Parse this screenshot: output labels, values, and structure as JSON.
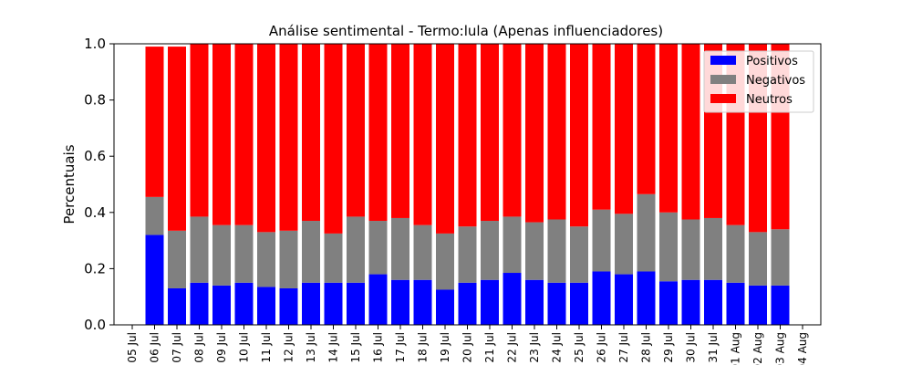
{
  "chart_data": {
    "type": "bar",
    "stacked": true,
    "title": "Análise sentimental - Termo:lula (Apenas influenciadores)",
    "xlabel": "",
    "ylabel": "Percentuais",
    "ylim": [
      0,
      1.0
    ],
    "yticks": [
      "0.0",
      "0.2",
      "0.4",
      "0.6",
      "0.8",
      "1.0"
    ],
    "xticks": [
      "05 Jul",
      "06 Jul",
      "07 Jul",
      "08 Jul",
      "09 Jul",
      "10 Jul",
      "11 Jul",
      "12 Jul",
      "13 Jul",
      "14 Jul",
      "15 Jul",
      "16 Jul",
      "17 Jul",
      "18 Jul",
      "19 Jul",
      "20 Jul",
      "21 Jul",
      "22 Jul",
      "23 Jul",
      "24 Jul",
      "25 Jul",
      "26 Jul",
      "27 Jul",
      "28 Jul",
      "29 Jul",
      "30 Jul",
      "31 Jul",
      "01 Aug",
      "02 Aug",
      "03 Aug",
      "04 Aug"
    ],
    "categories": [
      "06 Jul",
      "07 Jul",
      "08 Jul",
      "09 Jul",
      "10 Jul",
      "11 Jul",
      "12 Jul",
      "13 Jul",
      "14 Jul",
      "15 Jul",
      "16 Jul",
      "17 Jul",
      "18 Jul",
      "19 Jul",
      "20 Jul",
      "21 Jul",
      "22 Jul",
      "23 Jul",
      "24 Jul",
      "25 Jul",
      "26 Jul",
      "27 Jul",
      "28 Jul",
      "29 Jul",
      "30 Jul",
      "31 Jul",
      "01 Aug",
      "02 Aug",
      "03 Aug"
    ],
    "legend_position": "top-right",
    "grid": false,
    "series": [
      {
        "name": "Positivos",
        "color": "#0000ff",
        "values": [
          0.32,
          0.13,
          0.15,
          0.14,
          0.15,
          0.135,
          0.13,
          0.15,
          0.15,
          0.15,
          0.18,
          0.16,
          0.16,
          0.125,
          0.15,
          0.16,
          0.185,
          0.16,
          0.15,
          0.15,
          0.19,
          0.18,
          0.19,
          0.155,
          0.16,
          0.16,
          0.15,
          0.14,
          0.14
        ]
      },
      {
        "name": "Negativos",
        "color": "#808080",
        "values": [
          0.135,
          0.205,
          0.235,
          0.215,
          0.205,
          0.195,
          0.205,
          0.22,
          0.175,
          0.235,
          0.19,
          0.22,
          0.195,
          0.2,
          0.2,
          0.21,
          0.2,
          0.205,
          0.225,
          0.2,
          0.22,
          0.215,
          0.275,
          0.245,
          0.215,
          0.22,
          0.205,
          0.19,
          0.2
        ]
      },
      {
        "name": "Neutros",
        "color": "#ff0000",
        "values": [
          0.535,
          0.655,
          0.615,
          0.645,
          0.645,
          0.67,
          0.665,
          0.63,
          0.675,
          0.615,
          0.63,
          0.62,
          0.645,
          0.675,
          0.65,
          0.63,
          0.615,
          0.635,
          0.625,
          0.65,
          0.59,
          0.605,
          0.535,
          0.6,
          0.625,
          0.62,
          0.645,
          0.67,
          0.66
        ]
      }
    ]
  }
}
